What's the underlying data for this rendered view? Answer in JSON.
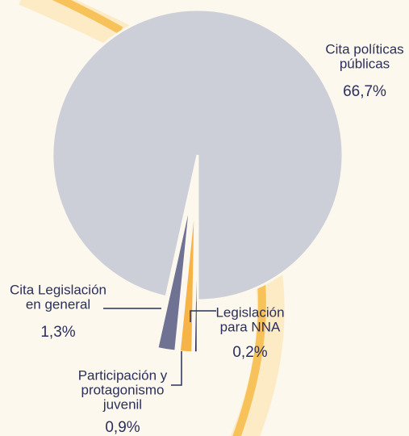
{
  "chart_data": {
    "type": "pie",
    "categories": [
      [
        "Legislación",
        "para NNA"
      ],
      [
        "Participación y",
        "protagonismo",
        "juvenil"
      ],
      [
        "Cita Legislación",
        "en general"
      ],
      [
        "Cita políticas",
        "públicas"
      ]
    ],
    "values": [
      0.2,
      0.9,
      1.3,
      66.7
    ],
    "value_labels": [
      "0,2%",
      "0,9%",
      "1,3%",
      "66,7%"
    ],
    "colors": [
      "#2b2f5c",
      "#f6b447",
      "#6f7293",
      "#ccced8"
    ]
  }
}
